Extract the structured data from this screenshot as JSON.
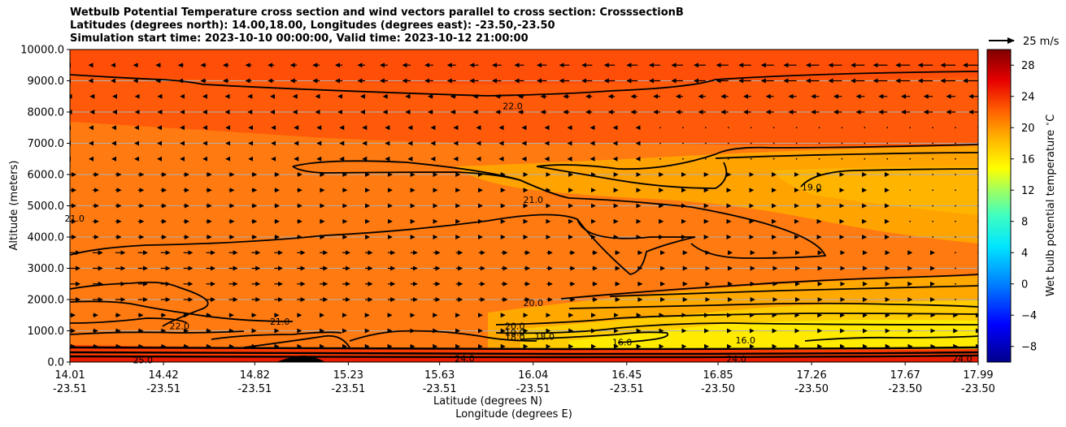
{
  "titles": {
    "line1": "Wetbulb Potential Temperature cross section and wind vectors parallel to cross section: CrosssectionB",
    "line2": "Latitudes (degrees north): 14.00,18.00, Longitudes (degrees east): -23.50,-23.50",
    "line3": "Simulation start time: 2023-10-10 00:00:00, Valid time: 2023-10-12 21:00:00"
  },
  "quiver_key": {
    "label": "25 m/s"
  },
  "colors": {
    "axes": "#000000",
    "gridline": "#b0b0b0",
    "contour": "#000000"
  },
  "chart_data": {
    "type": "heatmap",
    "title": "Wetbulb Potential Temperature cross section and wind vectors parallel to cross section: CrosssectionB",
    "xlabel": "Latitude (degrees N)",
    "xlabel2": "Longitude (degrees E)",
    "ylabel": "Altitude (meters)",
    "colorbar_label": "Wet bulb potential temperature $^\\circ$C",
    "ylim": [
      0,
      10000
    ],
    "xlim": [
      14.01,
      17.99
    ],
    "y_ticks": [
      "0.0",
      "1000.0",
      "2000.0",
      "3000.0",
      "4000.0",
      "5000.0",
      "6000.0",
      "7000.0",
      "8000.0",
      "9000.0",
      "10000.0"
    ],
    "y_tick_values": [
      0,
      1000,
      2000,
      3000,
      4000,
      5000,
      6000,
      7000,
      8000,
      9000,
      10000
    ],
    "x_ticks": [
      {
        "lat": "14.01",
        "lon": "-23.51",
        "value": 14.01
      },
      {
        "lat": "14.42",
        "lon": "-23.51",
        "value": 14.42
      },
      {
        "lat": "14.82",
        "lon": "-23.51",
        "value": 14.82
      },
      {
        "lat": "15.23",
        "lon": "-23.51",
        "value": 15.23
      },
      {
        "lat": "15.63",
        "lon": "-23.51",
        "value": 15.63
      },
      {
        "lat": "16.04",
        "lon": "-23.51",
        "value": 16.04
      },
      {
        "lat": "16.45",
        "lon": "-23.51",
        "value": 16.45
      },
      {
        "lat": "16.85",
        "lon": "-23.50",
        "value": 16.85
      },
      {
        "lat": "17.26",
        "lon": "-23.50",
        "value": 17.26
      },
      {
        "lat": "17.67",
        "lon": "-23.50",
        "value": 17.67
      },
      {
        "lat": "17.99",
        "lon": "-23.50",
        "value": 17.99
      }
    ],
    "colorbar_ticks": [
      "−8",
      "−4",
      "0",
      "4",
      "8",
      "12",
      "16",
      "20",
      "24",
      "28"
    ],
    "colorbar_tick_values": [
      -8,
      -4,
      0,
      4,
      8,
      12,
      16,
      20,
      24,
      28
    ],
    "colorbar_range": [
      -10,
      30
    ],
    "contour_labels": [
      {
        "text": "22.0",
        "x": 15.95,
        "y": 8200
      },
      {
        "text": "21.0",
        "x": 16.04,
        "y": 5200
      },
      {
        "text": "19.0",
        "x": 17.26,
        "y": 5600
      },
      {
        "text": "21.0",
        "x": 14.03,
        "y": 4600
      },
      {
        "text": "20.0",
        "x": 16.04,
        "y": 1900
      },
      {
        "text": "21.0",
        "x": 14.93,
        "y": 1300
      },
      {
        "text": "22.0",
        "x": 14.49,
        "y": 1150
      },
      {
        "text": "20.0",
        "x": 15.96,
        "y": 1150
      },
      {
        "text": "19.0",
        "x": 15.96,
        "y": 950
      },
      {
        "text": "18.0",
        "x": 15.96,
        "y": 800
      },
      {
        "text": "18.0",
        "x": 16.09,
        "y": 820
      },
      {
        "text": "16.0",
        "x": 16.43,
        "y": 640
      },
      {
        "text": "16.0",
        "x": 16.97,
        "y": 700
      },
      {
        "text": "25.0",
        "x": 14.33,
        "y": 70
      },
      {
        "text": "24.0",
        "x": 15.74,
        "y": 120
      },
      {
        "text": "24.0",
        "x": 16.93,
        "y": 100
      },
      {
        "text": "24.0",
        "x": 17.92,
        "y": 100
      }
    ]
  }
}
